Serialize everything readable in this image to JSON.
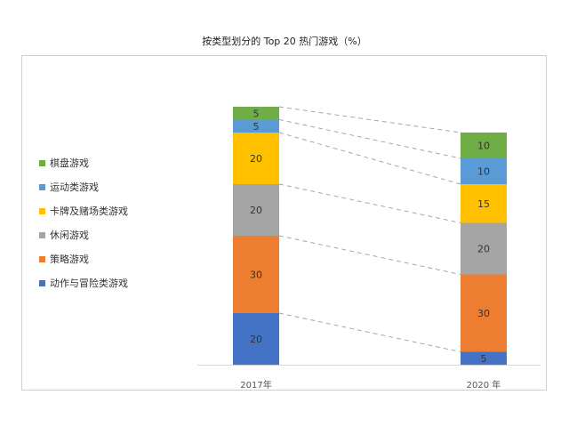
{
  "chart_data": {
    "type": "bar",
    "stacked": true,
    "title": "按类型划分的 Top 20 热门游戏（%）",
    "categories": [
      "2017年",
      "2020 年"
    ],
    "series": [
      {
        "name": "动作与冒险类游戏",
        "color": "#4472c4",
        "values": [
          20,
          5
        ]
      },
      {
        "name": "策略游戏",
        "color": "#ed7d31",
        "values": [
          30,
          30
        ]
      },
      {
        "name": "休闲游戏",
        "color": "#a5a5a5",
        "values": [
          20,
          20
        ]
      },
      {
        "name": "卡牌及赌场类游戏",
        "color": "#ffc000",
        "values": [
          20,
          15
        ]
      },
      {
        "name": "运动类游戏",
        "color": "#5b9bd5",
        "values": [
          5,
          10
        ]
      },
      {
        "name": "棋盘游戏",
        "color": "#70ad47",
        "values": [
          5,
          10
        ]
      }
    ],
    "ylim": [
      0,
      100
    ],
    "grid": false,
    "legend_position": "left",
    "connector_lines": "dashed"
  }
}
